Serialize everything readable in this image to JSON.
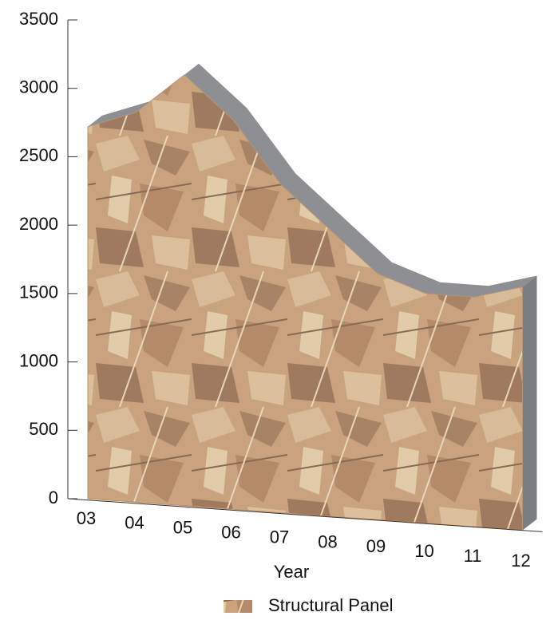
{
  "chart_data": {
    "type": "area",
    "x_label": "Year",
    "categories": [
      "03",
      "04",
      "05",
      "06",
      "07",
      "08",
      "09",
      "10",
      "11",
      "12"
    ],
    "series": [
      {
        "name": "Structural Panel",
        "color": "#c9a27e",
        "values": [
          2720,
          2850,
          3150,
          2850,
          2400,
          2100,
          1800,
          1680,
          1680,
          1780
        ]
      }
    ],
    "ylim": [
      0,
      3500
    ],
    "yticks": [
      0,
      500,
      1000,
      1500,
      2000,
      2500,
      3000,
      3500
    ],
    "legend": "bottom"
  }
}
